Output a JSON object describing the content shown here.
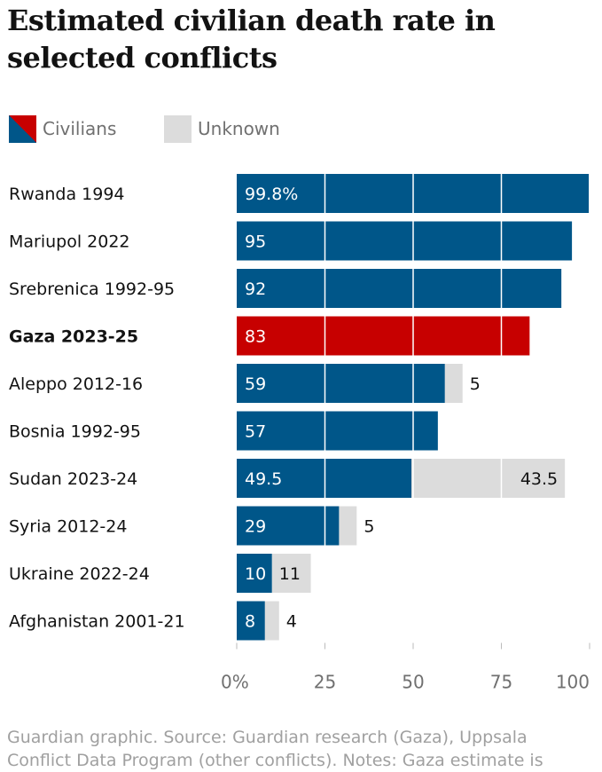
{
  "title": "Estimated civilian death rate in selected conflicts",
  "legend": {
    "civilians": "Civilians",
    "unknown": "Unknown"
  },
  "colors": {
    "civilians": "#005689",
    "highlight": "#c70000",
    "unknown": "#dcdcdc",
    "label_text": "#121212",
    "axis_text": "#707070",
    "footer_text": "#a0a0a0"
  },
  "footer": "Guardian graphic. Source: Guardian research (Gaza), Uppsala Conflict Data Program (other conflicts). Notes: Gaza estimate is",
  "chart_data": {
    "type": "bar",
    "orientation": "horizontal",
    "stacked": true,
    "categories": [
      "Rwanda 1994",
      "Mariupol 2022",
      "Srebrenica 1992-95",
      "Gaza 2023-25",
      "Aleppo 2012-16",
      "Bosnia 1992-95",
      "Sudan 2023-24",
      "Syria 2012-24",
      "Ukraine 2022-24",
      "Afghanistan 2001-21"
    ],
    "highlight_category": "Gaza 2023-25",
    "series": [
      {
        "name": "Civilians",
        "values": [
          99.8,
          95,
          92,
          83,
          59,
          57,
          49.5,
          29,
          10,
          8
        ],
        "labels": [
          "99.8%",
          "95",
          "92",
          "83",
          "59",
          "57",
          "49.5",
          "29",
          "10",
          "8"
        ]
      },
      {
        "name": "Unknown",
        "values": [
          0,
          0,
          0,
          0,
          5,
          0,
          43.5,
          5,
          11,
          4
        ],
        "labels": [
          "",
          "",
          "",
          "",
          "5",
          "",
          "43.5",
          "5",
          "11",
          "4"
        ]
      }
    ],
    "x_ticks": [
      "0%",
      "25",
      "50",
      "75",
      "100"
    ],
    "x_tick_values": [
      0,
      25,
      50,
      75,
      100
    ],
    "xlim": [
      0,
      100
    ],
    "grid": true,
    "legend_position": "top-left"
  }
}
